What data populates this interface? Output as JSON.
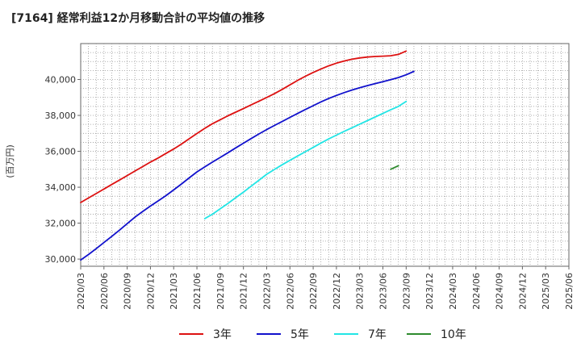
{
  "title": "[7164]  経常利益12か月移動合計の平均値の推移",
  "chart_data": {
    "type": "line",
    "ylabel": "(百万円)",
    "ylim": [
      29600,
      42000
    ],
    "yticks": [
      30000,
      32000,
      34000,
      36000,
      38000,
      40000
    ],
    "ytick_labels": [
      "30,000",
      "32,000",
      "34,000",
      "36,000",
      "38,000",
      "40,000"
    ],
    "x_categories": [
      "2020/03",
      "2020/06",
      "2020/09",
      "2020/12",
      "2021/03",
      "2021/06",
      "2021/09",
      "2021/12",
      "2022/03",
      "2022/06",
      "2022/09",
      "2022/12",
      "2023/03",
      "2023/06",
      "2023/09",
      "2023/12",
      "2024/03",
      "2024/06",
      "2024/09",
      "2024/12",
      "2025/03",
      "2025/06"
    ],
    "grid": true,
    "legend_position": "bottom",
    "series": [
      {
        "name": "3年",
        "color": "#dd1111",
        "start_index": 0,
        "values": [
          33150,
          33400,
          33650,
          33900,
          34150,
          34400,
          34650,
          34900,
          35150,
          35400,
          35630,
          35880,
          36130,
          36400,
          36700,
          36990,
          37280,
          37540,
          37760,
          37980,
          38180,
          38380,
          38590,
          38790,
          39000,
          39210,
          39450,
          39700,
          39950,
          40180,
          40390,
          40580,
          40760,
          40910,
          41030,
          41130,
          41200,
          41250,
          41280,
          41300,
          41320,
          41400,
          41580
        ]
      },
      {
        "name": "5年",
        "color": "#1111cc",
        "start_index": 0,
        "values": [
          29950,
          30250,
          30580,
          30920,
          31260,
          31610,
          31970,
          32330,
          32650,
          32950,
          33240,
          33530,
          33850,
          34180,
          34520,
          34850,
          35130,
          35400,
          35660,
          35920,
          36190,
          36450,
          36710,
          36970,
          37210,
          37440,
          37660,
          37890,
          38110,
          38330,
          38540,
          38750,
          38940,
          39110,
          39270,
          39410,
          39540,
          39660,
          39770,
          39880,
          39990,
          40110,
          40260,
          40450
        ]
      },
      {
        "name": "7年",
        "color": "#22e5e5",
        "start_index": 16,
        "values": [
          32250,
          32500,
          32800,
          33100,
          33420,
          33730,
          34060,
          34390,
          34720,
          34990,
          35250,
          35500,
          35740,
          35980,
          36220,
          36460,
          36690,
          36900,
          37110,
          37310,
          37510,
          37710,
          37910,
          38110,
          38310,
          38500,
          38780
        ]
      },
      {
        "name": "10年",
        "color": "#2e8b2e",
        "start_index": 40,
        "values": [
          35000,
          35200
        ]
      }
    ]
  }
}
